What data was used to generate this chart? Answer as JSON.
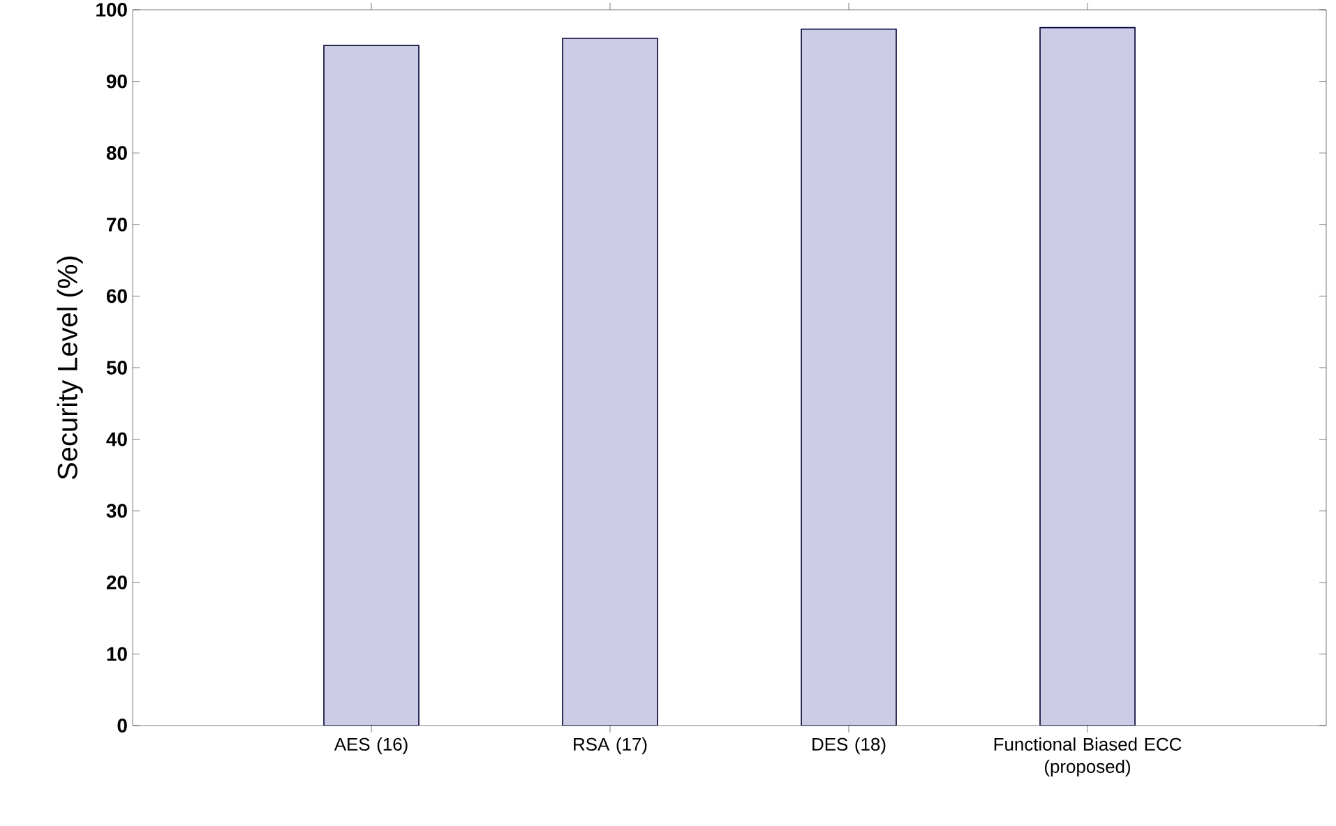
{
  "chart_data": {
    "type": "bar",
    "ylabel": "Security Level (%)",
    "categories": [
      "AES (16)",
      "RSA (17)",
      "DES (18)",
      "Functional Biased ECC\n(proposed)"
    ],
    "values": [
      95,
      96,
      97.3,
      97.5
    ],
    "color": "#cdcce6",
    "ylim": [
      0,
      100
    ],
    "yticks": [
      0,
      10,
      20,
      30,
      40,
      50,
      60,
      70,
      80,
      90,
      100
    ],
    "grid": false
  }
}
